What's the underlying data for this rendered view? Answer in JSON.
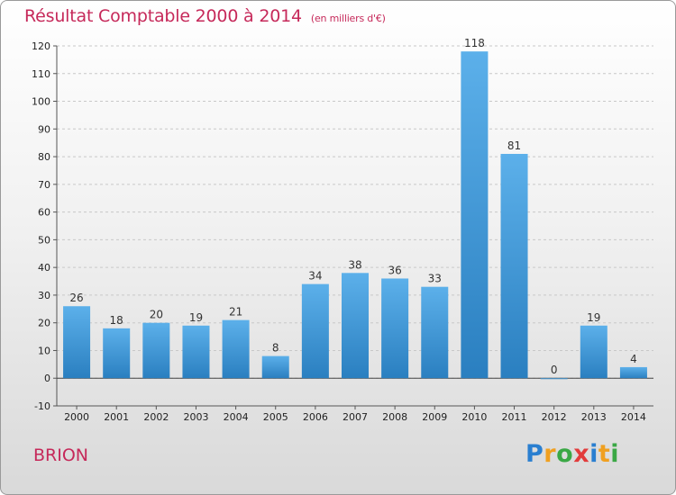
{
  "header": {
    "title": "Résultat Comptable 2000 à 2014",
    "unit": "(en milliers d'€)"
  },
  "footer": {
    "commune": "BRION",
    "logo_letters": [
      "P",
      "r",
      "o",
      "x",
      "i",
      "t",
      "i"
    ],
    "logo_colors": [
      "#2a7fd0",
      "#f0a020",
      "#3aa845",
      "#e23b3b",
      "#2a7fd0",
      "#f0a020",
      "#3aa845"
    ]
  },
  "colors": {
    "accent": "#c6295a",
    "bar_top": "#5cb0ea",
    "bar_bottom": "#2a7fc0",
    "grid": "#c8c8c8"
  },
  "chart_data": {
    "type": "bar",
    "title": "Résultat Comptable 2000 à 2014",
    "ylabel": "",
    "xlabel": "",
    "categories": [
      "2000",
      "2001",
      "2002",
      "2003",
      "2004",
      "2005",
      "2006",
      "2007",
      "2008",
      "2009",
      "2010",
      "2011",
      "2012",
      "2013",
      "2014"
    ],
    "values": [
      26,
      18,
      20,
      19,
      21,
      8,
      34,
      38,
      36,
      33,
      118,
      81,
      0,
      19,
      4
    ],
    "ylim": [
      -10,
      120
    ],
    "yticks": [
      -10,
      0,
      10,
      20,
      30,
      40,
      50,
      60,
      70,
      80,
      90,
      100,
      110,
      120
    ],
    "grid": "horizontal dashed"
  }
}
